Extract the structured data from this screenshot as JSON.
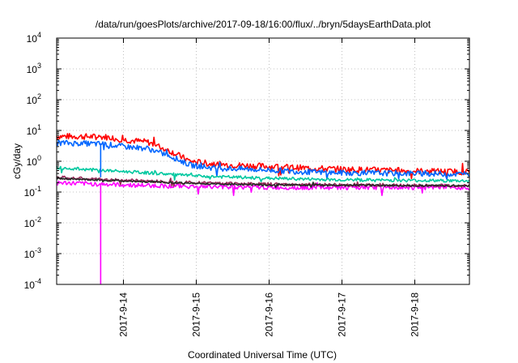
{
  "chart_data": {
    "type": "line",
    "title": "/data/run/goesPlots/archive/2017-09-18/16:00/flux/../bryn/5daysEarthData.plot",
    "xlabel": "Coordinated Universal Time (UTC)",
    "ylabel": "cGy/day",
    "yscale": "log",
    "ylim": [
      0.0001,
      10000
    ],
    "xlim": [
      "2017-09-13T02:00",
      "2017-09-18T18:00"
    ],
    "grid": true,
    "legend": "none",
    "x_ticks": [
      "2017-9-14",
      "2017-9-15",
      "2017-9-16",
      "2017-9-17",
      "2017-9-18"
    ],
    "y_ticks": [
      {
        "value": 0.0001,
        "base": "10",
        "exp": "-4"
      },
      {
        "value": 0.001,
        "base": "10",
        "exp": "-3"
      },
      {
        "value": 0.01,
        "base": "10",
        "exp": "-2"
      },
      {
        "value": 0.1,
        "base": "10",
        "exp": "-1"
      },
      {
        "value": 1,
        "base": "10",
        "exp": "0"
      },
      {
        "value": 10,
        "base": "10",
        "exp": "1"
      },
      {
        "value": 100,
        "base": "10",
        "exp": "2"
      },
      {
        "value": 1000,
        "base": "10",
        "exp": "3"
      },
      {
        "value": 10000,
        "base": "10",
        "exp": "4"
      }
    ],
    "series": [
      {
        "color": "#ff0000",
        "noise": 0.1,
        "points": [
          [
            "2017-09-13T02:00",
            6.5
          ],
          [
            "2017-09-13T18:00",
            6.2
          ],
          [
            "2017-09-14T00:00",
            5.0
          ],
          [
            "2017-09-14T08:00",
            4.2
          ],
          [
            "2017-09-14T16:00",
            2.0
          ],
          [
            "2017-09-14T22:00",
            1.0
          ],
          [
            "2017-09-15T06:00",
            0.8
          ],
          [
            "2017-09-15T18:00",
            0.72
          ],
          [
            "2017-09-16T12:00",
            0.6
          ],
          [
            "2017-09-17T00:00",
            0.55
          ],
          [
            "2017-09-18T00:00",
            0.48
          ],
          [
            "2017-09-18T18:00",
            0.45
          ]
        ]
      },
      {
        "color": "#0066ff",
        "noise": 0.09,
        "points": [
          [
            "2017-09-13T02:00",
            4.0
          ],
          [
            "2017-09-13T18:00",
            3.6
          ],
          [
            "2017-09-14T00:00",
            3.0
          ],
          [
            "2017-09-14T08:00",
            2.6
          ],
          [
            "2017-09-14T16:00",
            1.4
          ],
          [
            "2017-09-14T22:00",
            0.75
          ],
          [
            "2017-09-15T06:00",
            0.6
          ],
          [
            "2017-09-15T18:00",
            0.55
          ],
          [
            "2017-09-16T12:00",
            0.45
          ],
          [
            "2017-09-17T00:00",
            0.42
          ],
          [
            "2017-09-18T00:00",
            0.4
          ],
          [
            "2017-09-18T18:00",
            0.38
          ]
        ]
      },
      {
        "color": "#00c8a0",
        "noise": 0.05,
        "points": [
          [
            "2017-09-13T02:00",
            0.62
          ],
          [
            "2017-09-13T18:00",
            0.5
          ],
          [
            "2017-09-14T12:00",
            0.4
          ],
          [
            "2017-09-15T00:00",
            0.33
          ],
          [
            "2017-09-16T00:00",
            0.28
          ],
          [
            "2017-09-17T00:00",
            0.25
          ],
          [
            "2017-09-18T18:00",
            0.23
          ]
        ]
      },
      {
        "color": "#ff00ff",
        "noise": 0.07,
        "points": [
          [
            "2017-09-13T02:00",
            0.2
          ],
          [
            "2017-09-14T00:00",
            0.17
          ],
          [
            "2017-09-15T00:00",
            0.15
          ],
          [
            "2017-09-16T00:00",
            0.14
          ],
          [
            "2017-09-17T00:00",
            0.14
          ],
          [
            "2017-09-18T18:00",
            0.14
          ]
        ]
      },
      {
        "color": "#9a2a5a",
        "noise": 0.05,
        "points": [
          [
            "2017-09-13T02:00",
            0.3
          ],
          [
            "2017-09-13T18:00",
            0.25
          ],
          [
            "2017-09-14T12:00",
            0.22
          ],
          [
            "2017-09-15T00:00",
            0.2
          ],
          [
            "2017-09-16T00:00",
            0.18
          ],
          [
            "2017-09-17T00:00",
            0.17
          ],
          [
            "2017-09-18T18:00",
            0.16
          ]
        ]
      },
      {
        "color": "#2a2a2a",
        "noise": 0.03,
        "points": [
          [
            "2017-09-13T02:00",
            0.28
          ],
          [
            "2017-09-13T18:00",
            0.24
          ],
          [
            "2017-09-14T12:00",
            0.21
          ],
          [
            "2017-09-15T00:00",
            0.19
          ],
          [
            "2017-09-16T00:00",
            0.17
          ],
          [
            "2017-09-18T18:00",
            0.16
          ]
        ]
      }
    ],
    "spikes": [
      {
        "x": "2017-09-13T16:30",
        "to": 0.0001,
        "color": "#ff00ff"
      },
      {
        "x": "2017-09-13T16:30",
        "to": 0.3,
        "color": "#0066ff"
      }
    ]
  }
}
